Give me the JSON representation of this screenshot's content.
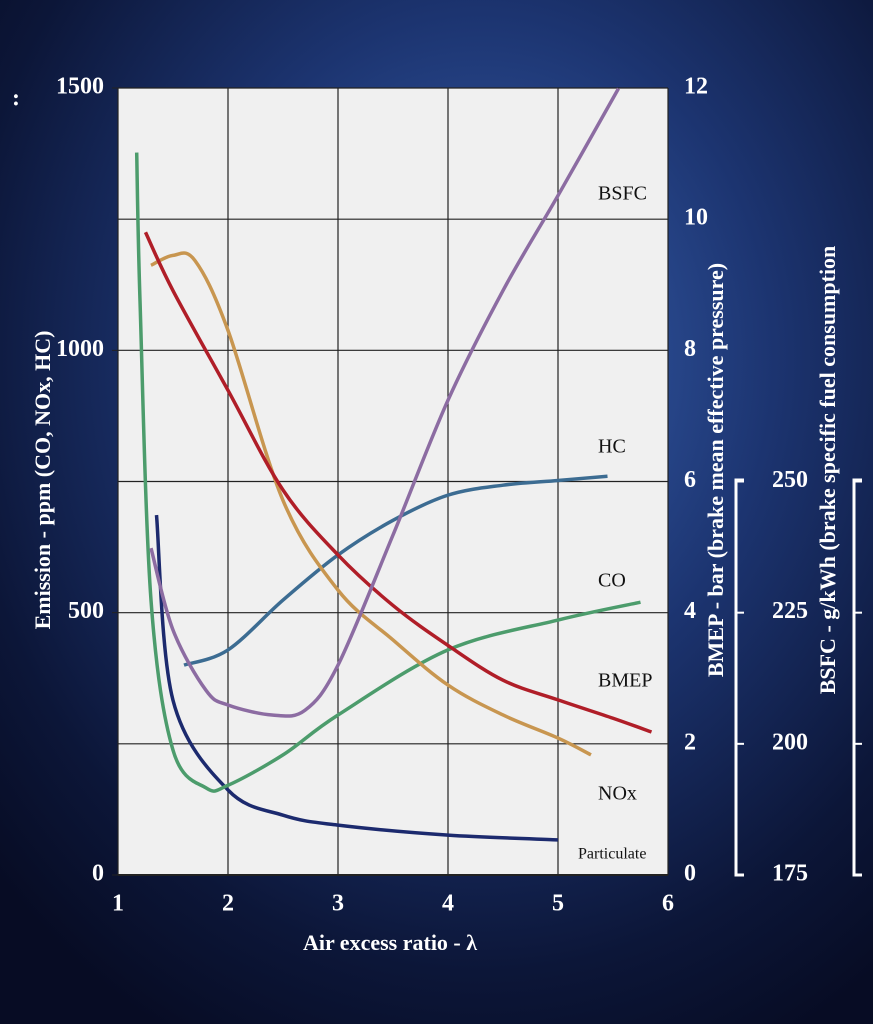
{
  "fragment": ":",
  "chart_data": {
    "type": "line",
    "xlabel": "Air excess ratio - λ",
    "ylabel": "Emission  -  ppm  (CO, NOx, HC)",
    "y2label": "BMEP  -  bar (brake mean effective pressure)",
    "y3label": "BSFC  -  g/kWh  (brake specific fuel consumption",
    "xlim": [
      1,
      6
    ],
    "xticks": [
      1,
      2,
      3,
      4,
      5,
      6
    ],
    "ylim": [
      0,
      1500
    ],
    "yticks": [
      0,
      500,
      1000,
      1500
    ],
    "y2lim": [
      0,
      12
    ],
    "y2ticks": [
      0,
      2,
      4,
      6,
      8,
      10,
      12
    ],
    "y3lim": [
      175,
      325
    ],
    "y3ticks": [
      175,
      200,
      225,
      250
    ],
    "grid": true,
    "series": [
      {
        "name": "Particulate",
        "color": "#1c2a6e",
        "axis": "y",
        "x": [
          1.35,
          1.5,
          2,
          2.5,
          3,
          4,
          5
        ],
        "values": [
          686,
          333,
          162,
          114,
          95,
          76,
          67
        ]
      },
      {
        "name": "CO",
        "color": "#4c9c6c",
        "axis": "y",
        "x": [
          1.17,
          1.2,
          1.3,
          1.5,
          1.8,
          2,
          2.5,
          3,
          4,
          5,
          5.75
        ],
        "values": [
          1377,
          1095,
          524,
          238,
          166,
          171,
          229,
          305,
          429,
          486,
          520
        ]
      },
      {
        "name": "HC",
        "color": "#3c6c92",
        "axis": "y",
        "x": [
          1.6,
          2,
          2.5,
          3,
          3.5,
          4,
          4.5,
          5,
          5.45
        ],
        "values": [
          400,
          429,
          524,
          610,
          676,
          724,
          743,
          752,
          760
        ]
      },
      {
        "name": "NOx",
        "color": "#c89650",
        "axis": "y",
        "x": [
          1.3,
          1.5,
          1.7,
          2,
          2.5,
          3,
          3.5,
          4,
          4.5,
          5,
          5.3
        ],
        "values": [
          1162,
          1181,
          1171,
          1038,
          714,
          543,
          448,
          362,
          305,
          261,
          229
        ]
      },
      {
        "name": "BMEP",
        "color": "#b01e28",
        "axis": "y2",
        "x": [
          1.25,
          1.5,
          2,
          2.5,
          3,
          3.5,
          4,
          4.5,
          5,
          5.5,
          5.85
        ],
        "values": [
          9.8,
          8.91,
          7.39,
          5.87,
          4.88,
          4.11,
          3.5,
          2.97,
          2.67,
          2.39,
          2.18
        ]
      },
      {
        "name": "BSFC",
        "color": "#8c6ca2",
        "axis": "y3",
        "x": [
          1.3,
          1.5,
          1.8,
          2,
          2.4,
          2.7,
          3,
          3.5,
          4,
          4.5,
          5,
          5.55
        ],
        "values": [
          237.3,
          221.7,
          210.2,
          207.4,
          205.5,
          206.4,
          215,
          239.8,
          265.5,
          286.4,
          304.5,
          324.9
        ]
      }
    ]
  }
}
